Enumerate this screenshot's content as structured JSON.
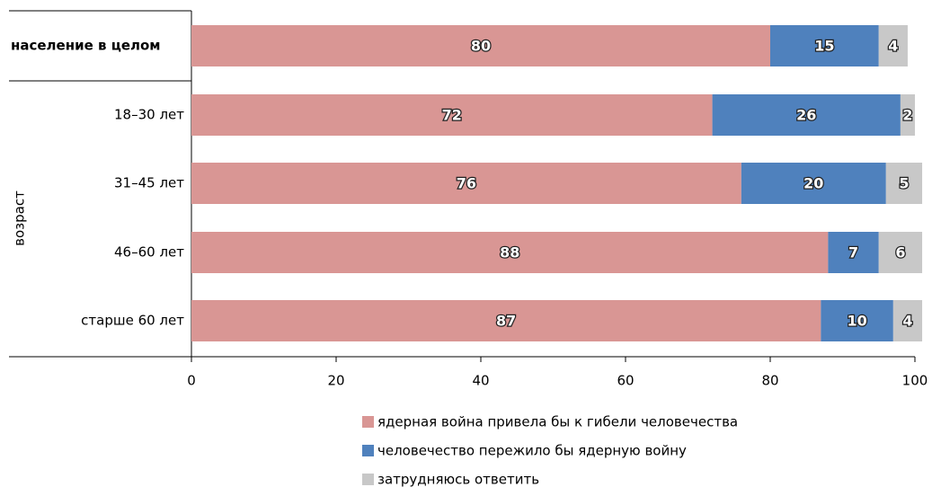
{
  "chart_data": {
    "type": "stacked-barh",
    "categories": [
      "население в целом",
      "18–30 лет",
      "31–45 лет",
      "46–60 лет",
      "старше 60 лет"
    ],
    "group_label": "возраст",
    "series": [
      {
        "name": "ядерная война привела бы к гибели человечества",
        "color": "#d99694",
        "values": [
          80,
          72,
          76,
          88,
          87
        ]
      },
      {
        "name": "человечество пережило бы ядерную войну",
        "color": "#4f81bd",
        "values": [
          15,
          26,
          20,
          7,
          10
        ]
      },
      {
        "name": "затрудняюсь ответить",
        "color": "#c8c8c8",
        "values": [
          4,
          2,
          5,
          6,
          4
        ]
      }
    ],
    "xlim": [
      0,
      100
    ],
    "xticks": [
      0,
      20,
      40,
      60,
      80,
      100
    ],
    "legend": "bottom"
  }
}
